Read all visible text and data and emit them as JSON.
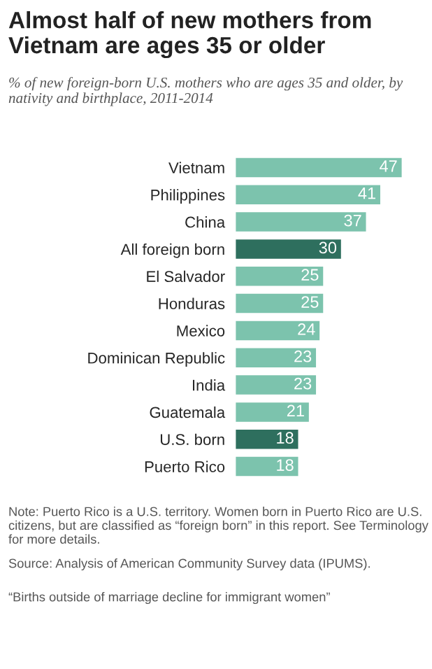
{
  "chart_data": {
    "type": "bar",
    "orientation": "horizontal",
    "title": "Almost half of new mothers from Vietnam are ages 35 or older",
    "subtitle": "% of new foreign-born U.S. mothers who are ages 35 and older, by nativity and birthplace, 2011-2014",
    "categories": [
      "Vietnam",
      "Philippines",
      "China",
      "All foreign born",
      "El Salvador",
      "Honduras",
      "Mexico",
      "Dominican Republic",
      "India",
      "Guatemala",
      "U.S. born",
      "Puerto Rico"
    ],
    "values": [
      47,
      41,
      37,
      30,
      25,
      25,
      24,
      23,
      23,
      21,
      18,
      18
    ],
    "colors": [
      "#7cc3ad",
      "#7cc3ad",
      "#7cc3ad",
      "#2e6f5e",
      "#7cc3ad",
      "#7cc3ad",
      "#7cc3ad",
      "#7cc3ad",
      "#7cc3ad",
      "#7cc3ad",
      "#2e6f5e",
      "#7cc3ad"
    ],
    "data_labels": true,
    "tick_labels": "y",
    "grid": false,
    "legend": false,
    "annotations": [
      "Note: Puerto Rico is a U.S. territory. Women born in Puerto Rico are U.S. citizens, but are classified as “foreign born” in this report. See Terminology for more details.",
      "Source: Analysis of American Community Survey data (IPUMS).",
      "“Births outside of marriage decline for immigrant women”"
    ]
  }
}
